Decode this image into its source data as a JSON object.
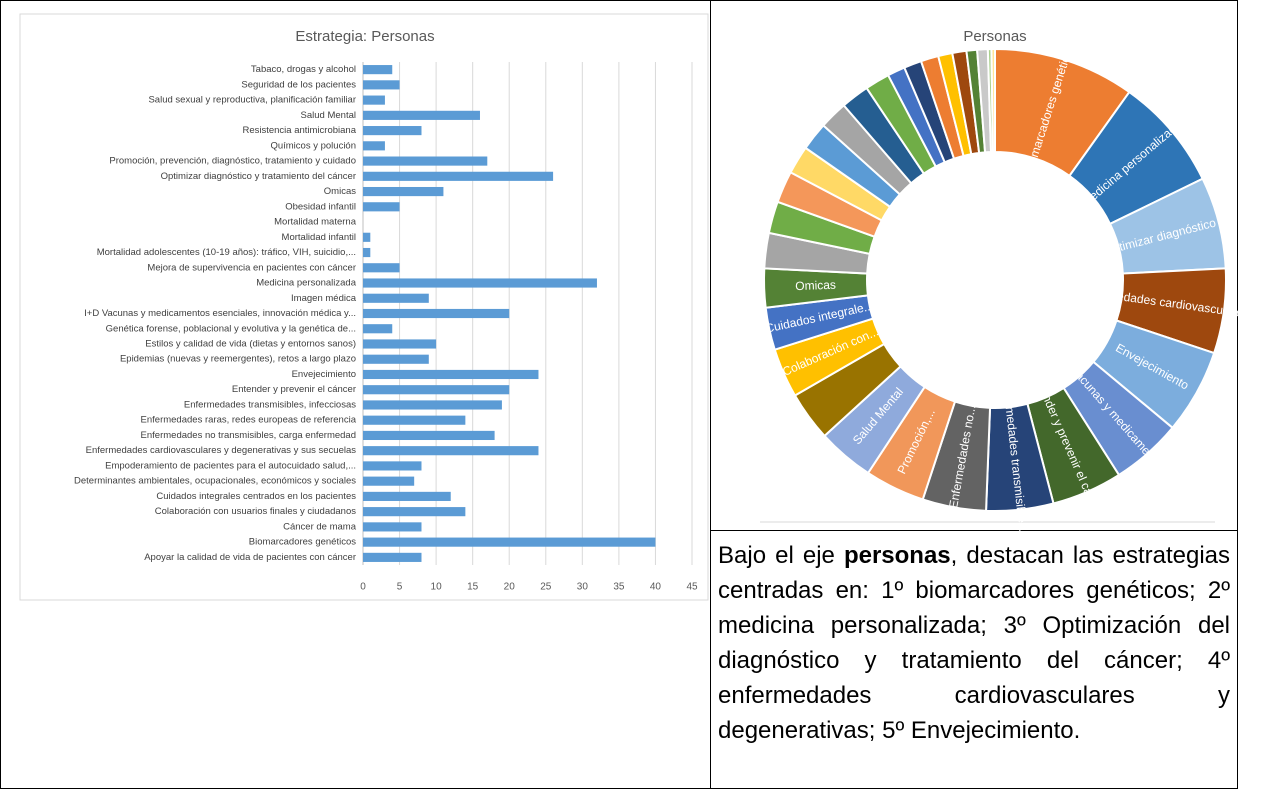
{
  "chart_data": [
    {
      "type": "bar",
      "title": "Estrategia: Personas",
      "orientation": "horizontal",
      "color": "#5b9bd5",
      "grid": true,
      "categories": [
        "Tabaco, drogas y alcohol",
        "Seguridad de los pacientes",
        "Salud sexual y reproductiva, planificación familiar",
        "Salud Mental",
        "Resistencia antimicrobiana",
        "Químicos y polución",
        "Promoción, prevención, diagnóstico, tratamiento y cuidado",
        "Optimizar diagnóstico y tratamiento del cáncer",
        "Omicas",
        "Obesidad infantil",
        "Mortalidad materna",
        "Mortalidad infantil",
        "Mortalidad adolescentes (10-19 años): tráfico, VIH, suicidio,...",
        "Mejora de supervivencia en pacientes con cáncer",
        "Medicina personalizada",
        "Imagen médica",
        "I+D Vacunas y medicamentos esenciales, innovación médica y...",
        "Genética forense, poblacional y evolutiva y la genética de...",
        "Estilos y calidad de vida (dietas y entornos sanos)",
        "Epidemias (nuevas y reemergentes), retos a largo plazo",
        "Envejecimiento",
        "Entender y prevenir el cáncer",
        "Enfermedades transmisibles, infecciosas",
        "Enfermedades raras, redes europeas de referencia",
        "Enfermedades no transmisibles, carga enfermedad",
        "Enfermedades cardiovasculares y degenerativas y sus secuelas",
        "Empoderamiento de pacientes para el autocuidado salud,...",
        "Determinantes ambientales, ocupacionales, económicos y sociales",
        "Cuidados integrales centrados en los pacientes",
        "Colaboración con usuarios finales y ciudadanos",
        "Cáncer de mama",
        "Biomarcadores genéticos",
        "Apoyar la calidad de vida de pacientes con cáncer"
      ],
      "values": [
        4,
        5,
        3,
        16,
        8,
        3,
        17,
        26,
        11,
        5,
        0,
        1,
        1,
        5,
        32,
        9,
        20,
        4,
        10,
        9,
        24,
        20,
        19,
        14,
        18,
        24,
        8,
        7,
        12,
        14,
        8,
        40,
        8
      ],
      "xlim": [
        0,
        45
      ],
      "xticks": [
        0,
        5,
        10,
        15,
        20,
        25,
        30,
        35,
        40,
        45
      ]
    },
    {
      "type": "pie",
      "title": "Personas",
      "donut": true,
      "categories": [
        "Biomarcadores genéticos",
        "Medicina personalizada",
        "Optimizar diagnóstico y...",
        "Enfermedades cardiovasculares y...",
        "Envejecimiento",
        "I+D Vacunas y medicamentos...",
        "Entender y prevenir el cáncer",
        "Enfermedades transmisibles...",
        "Enfermedades no...",
        "Promoción,...",
        "Salud Mental",
        null,
        "Colaboración con...",
        "Cuidados integrale...",
        "Omicas",
        null,
        null,
        null,
        null,
        null,
        null,
        null,
        null,
        null,
        null,
        null,
        null,
        null,
        null,
        null,
        null,
        null,
        null
      ],
      "values": [
        40,
        32,
        26,
        24,
        24,
        20,
        20,
        19,
        18,
        17,
        16,
        14,
        14,
        12,
        11,
        10,
        9,
        9,
        8,
        8,
        8,
        8,
        7,
        5,
        5,
        5,
        4,
        4,
        3,
        3,
        1,
        1,
        0
      ],
      "colors": [
        "#ed7d31",
        "#2e75b6",
        "#9dc3e6",
        "#9e480e",
        "#7caddd",
        "#698ed0",
        "#43682b",
        "#264478",
        "#636363",
        "#f1975a",
        "#8faadc",
        "#997300",
        "#ffc000",
        "#4472c4",
        "#548235",
        "#a5a5a5",
        "#70ad47",
        "#f4975a",
        "#ffd966",
        "#5b9bd5",
        "#a5a5a5",
        "#255e91",
        "#70ad47",
        "#4472c4",
        "#264478",
        "#ed7d31",
        "#ffc000",
        "#9e480e",
        "#548235",
        "#c9c9c9",
        "#a9d18e",
        "#ffe699",
        "#bdd7ee"
      ]
    }
  ],
  "text": {
    "parts": [
      "Bajo el eje ",
      "personas",
      ", destacan las estrategias centradas en: 1º biomarcadores genéticos; 2º medicina personalizada; 3º Optimización del diagnóstico y tratamiento del cáncer; 4º enfermedades cardiovasculares y degenerativas; 5º Envejecimiento."
    ]
  }
}
